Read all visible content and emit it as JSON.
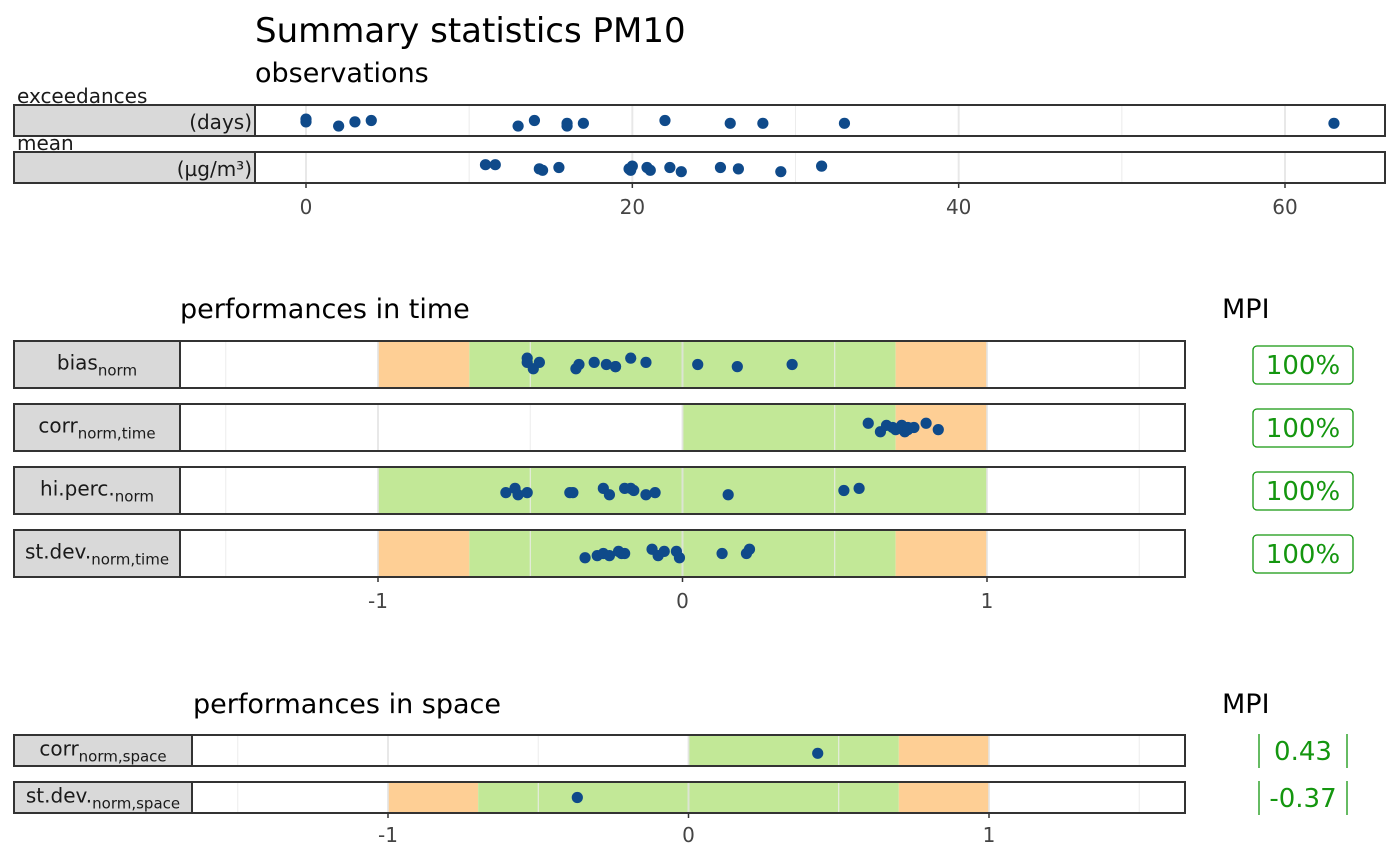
{
  "figure": {
    "title": "Summary statistics PM10",
    "section_observations": "observations",
    "section_time": "performances in time",
    "section_space": "performances in space",
    "mpi_header_time": "MPI",
    "mpi_header_space": "MPI"
  },
  "colors": {
    "points": "#0f4a8a",
    "green_zone": "#c2e897",
    "orange_zone": "#fecf95",
    "mpi_text": "#14960f",
    "strip_fill": "#d9d9d9"
  },
  "chart_data": [
    {
      "type": "scatter",
      "title": "observations",
      "xlim": [
        -3,
        66
      ],
      "xticks": [
        "0",
        "20",
        "40",
        "60"
      ],
      "xtick_values": [
        0,
        20,
        40,
        60
      ],
      "panels": [
        {
          "label_top": "exceedances",
          "label_unit": "(days)",
          "x": [
            0,
            0,
            2,
            3,
            4,
            13,
            14,
            16,
            16,
            17,
            22,
            26,
            28,
            33,
            63
          ],
          "jitter": [
            -0.1,
            0.1,
            0.4,
            0.1,
            0.0,
            0.4,
            0.0,
            0.2,
            0.4,
            0.2,
            0.0,
            0.2,
            0.2,
            0.2,
            0.2
          ]
        },
        {
          "label_top": "mean",
          "label_unit": "(µg/m³)",
          "x": [
            11.0,
            11.6,
            14.3,
            14.5,
            15.5,
            19.8,
            20.0,
            19.9,
            20.9,
            21.1,
            22.3,
            23.0,
            25.4,
            26.5,
            29.1,
            31.6
          ],
          "jitter": [
            -0.2,
            -0.2,
            0.1,
            0.2,
            0.0,
            0.1,
            -0.1,
            0.2,
            0.0,
            0.2,
            0.0,
            0.3,
            0.0,
            0.1,
            0.3,
            -0.1
          ]
        }
      ]
    },
    {
      "type": "scatter",
      "title": "performances in time",
      "xlim": [
        -1.65,
        1.65
      ],
      "xticks": [
        "-1",
        "0",
        "1"
      ],
      "xtick_values": [
        -1,
        0,
        1
      ],
      "panels": [
        {
          "label": "bias",
          "sub": "norm",
          "zones": [
            {
              "from": -1,
              "to": -0.7,
              "color": "orange"
            },
            {
              "from": -0.7,
              "to": 0.7,
              "color": "green"
            },
            {
              "from": 0.7,
              "to": 1,
              "color": "orange"
            }
          ],
          "x": [
            -0.51,
            -0.51,
            -0.49,
            -0.47,
            -0.35,
            -0.34,
            -0.29,
            -0.25,
            -0.22,
            -0.22,
            -0.17,
            -0.12,
            0.05,
            0.18,
            0.36
          ],
          "jitter": [
            -0.3,
            -0.1,
            0.2,
            -0.1,
            0.2,
            0.0,
            -0.1,
            0.0,
            0.1,
            0.1,
            -0.3,
            -0.1,
            0.0,
            0.1,
            0.0
          ],
          "mpi": "100%"
        },
        {
          "label": "corr",
          "sub": "norm,time",
          "zones": [
            {
              "from": 0,
              "to": 0.7,
              "color": "green"
            },
            {
              "from": 0.7,
              "to": 1,
              "color": "orange"
            }
          ],
          "x": [
            0.61,
            0.65,
            0.67,
            0.69,
            0.7,
            0.72,
            0.73,
            0.74,
            0.74,
            0.76,
            0.8,
            0.84
          ],
          "jitter": [
            -0.2,
            0.2,
            -0.1,
            0.0,
            0.1,
            -0.1,
            0.2,
            0.0,
            0.1,
            0.0,
            -0.2,
            0.1
          ],
          "mpi": "100%"
        },
        {
          "label": "hi.perc.",
          "sub": "norm",
          "zones": [
            {
              "from": -1,
              "to": 1,
              "color": "green"
            }
          ],
          "x": [
            -0.58,
            -0.55,
            -0.54,
            -0.51,
            -0.37,
            -0.36,
            -0.26,
            -0.24,
            -0.19,
            -0.17,
            -0.16,
            -0.12,
            -0.09,
            0.15,
            0.53,
            0.58
          ],
          "jitter": [
            0.1,
            -0.1,
            0.2,
            0.1,
            0.1,
            0.1,
            -0.1,
            0.2,
            -0.1,
            -0.1,
            0.0,
            0.2,
            0.1,
            0.2,
            0.0,
            -0.1
          ],
          "mpi": "100%"
        },
        {
          "label": "st.dev.",
          "sub": "norm,time",
          "zones": [
            {
              "from": -1,
              "to": -0.7,
              "color": "orange"
            },
            {
              "from": -0.7,
              "to": 0.7,
              "color": "green"
            },
            {
              "from": 0.7,
              "to": 1,
              "color": "orange"
            }
          ],
          "x": [
            -0.32,
            -0.28,
            -0.26,
            -0.24,
            -0.21,
            -0.2,
            -0.19,
            -0.1,
            -0.08,
            -0.06,
            -0.02,
            -0.01,
            0.13,
            0.21,
            0.22
          ],
          "jitter": [
            0.2,
            0.1,
            0.0,
            0.1,
            -0.1,
            0.0,
            0.0,
            -0.2,
            0.1,
            -0.1,
            -0.1,
            0.2,
            0.0,
            0.0,
            -0.2
          ],
          "mpi": "100%"
        }
      ]
    },
    {
      "type": "scatter",
      "title": "performances in space",
      "xlim": [
        -1.65,
        1.65
      ],
      "xticks": [
        "-1",
        "0",
        "1"
      ],
      "xtick_values": [
        -1,
        0,
        1
      ],
      "panels": [
        {
          "label": "corr",
          "sub": "norm,space",
          "zones": [
            {
              "from": 0,
              "to": 0.7,
              "color": "green"
            },
            {
              "from": 0.7,
              "to": 1,
              "color": "orange"
            }
          ],
          "x": [
            0.43
          ],
          "jitter": [
            0.2
          ],
          "mpi": "0.43"
        },
        {
          "label": "st.dev.",
          "sub": "norm,space",
          "zones": [
            {
              "from": -1,
              "to": -0.7,
              "color": "orange"
            },
            {
              "from": -0.7,
              "to": 0.7,
              "color": "green"
            },
            {
              "from": 0.7,
              "to": 1,
              "color": "orange"
            }
          ],
          "x": [
            -0.37
          ],
          "jitter": [
            0.0
          ],
          "mpi": "-0.37"
        }
      ]
    }
  ]
}
